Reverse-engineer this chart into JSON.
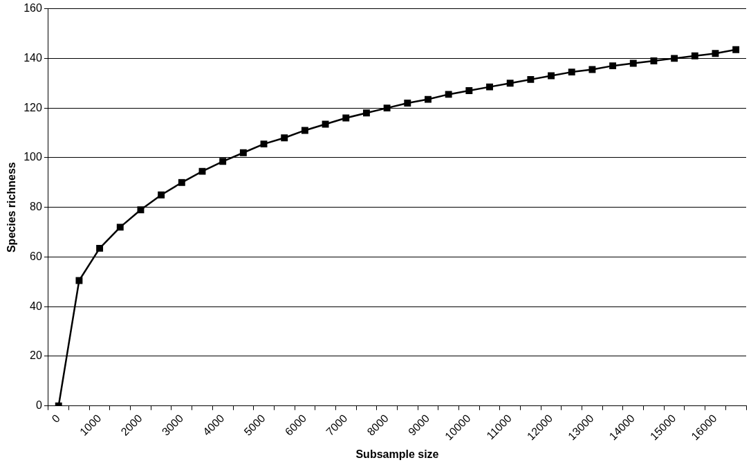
{
  "chart_data": {
    "type": "line",
    "xlabel": "Subsample size",
    "ylabel": "Species richness",
    "categories": [
      "0",
      null,
      "1000",
      null,
      "2000",
      null,
      "3000",
      null,
      "4000",
      null,
      "5000",
      null,
      "6000",
      null,
      "7000",
      null,
      "8000",
      null,
      "9000",
      null,
      "10000",
      null,
      "11000",
      null,
      "12000",
      null,
      "13000",
      null,
      "14000",
      null,
      "15000",
      null,
      "16000",
      null
    ],
    "series": [
      {
        "color": "#000000",
        "values": [
          0,
          50.5,
          63.5,
          72,
          79,
          85,
          90,
          94.5,
          98.5,
          102,
          105.5,
          108,
          111,
          113.5,
          116,
          118,
          120,
          122,
          123.5,
          125.5,
          127,
          128.5,
          130,
          131.5,
          133,
          134.5,
          135.5,
          137,
          138,
          139,
          140,
          141,
          142,
          143.5
        ]
      }
    ],
    "ylim": [
      0,
      160
    ],
    "yticks": [
      0,
      20,
      40,
      60,
      80,
      100,
      120,
      140,
      160
    ],
    "grid": "y",
    "legend": false,
    "marker": "square",
    "line_style": "solid"
  }
}
